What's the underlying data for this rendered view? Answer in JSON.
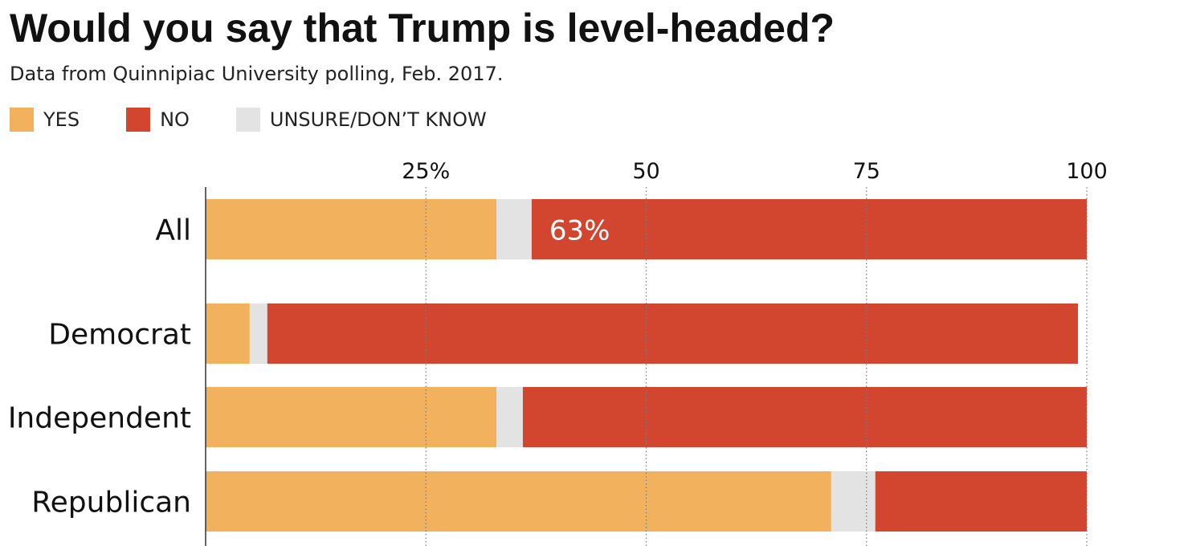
{
  "title": "Would you say that Trump is level-headed?",
  "subtitle": "Data from Quinnipiac University polling, Feb. 2017.",
  "legend": [
    {
      "label": "YES",
      "color": "#f2b15c"
    },
    {
      "label": "NO",
      "color": "#d2452f"
    },
    {
      "label": "UNSURE/DON’T KNOW",
      "color": "#e3e3e3"
    }
  ],
  "chart_data": {
    "type": "bar",
    "orientation": "horizontal",
    "stacked": true,
    "title": "Would you say that Trump is level-headed?",
    "subtitle": "Data from Quinnipiac University polling, Feb. 2017.",
    "categories": [
      "All",
      "Democrat",
      "Independent",
      "Republican"
    ],
    "series": [
      {
        "name": "YES",
        "color": "#f2b15c",
        "values": [
          33,
          5,
          33,
          71
        ]
      },
      {
        "name": "UNSURE/DON’T KNOW",
        "color": "#e3e3e3",
        "values": [
          4,
          2,
          3,
          5
        ]
      },
      {
        "name": "NO",
        "color": "#d2452f",
        "values": [
          63,
          92,
          64,
          24
        ]
      }
    ],
    "xticks": [
      "25%",
      "50",
      "75",
      "100"
    ],
    "xtick_values": [
      25,
      50,
      75,
      100
    ],
    "xlim": [
      0,
      100
    ],
    "annotations": [
      {
        "category": "All",
        "series": "NO",
        "text": "63%"
      }
    ],
    "grid": "vertical dotted",
    "legend_position": "top-left"
  }
}
